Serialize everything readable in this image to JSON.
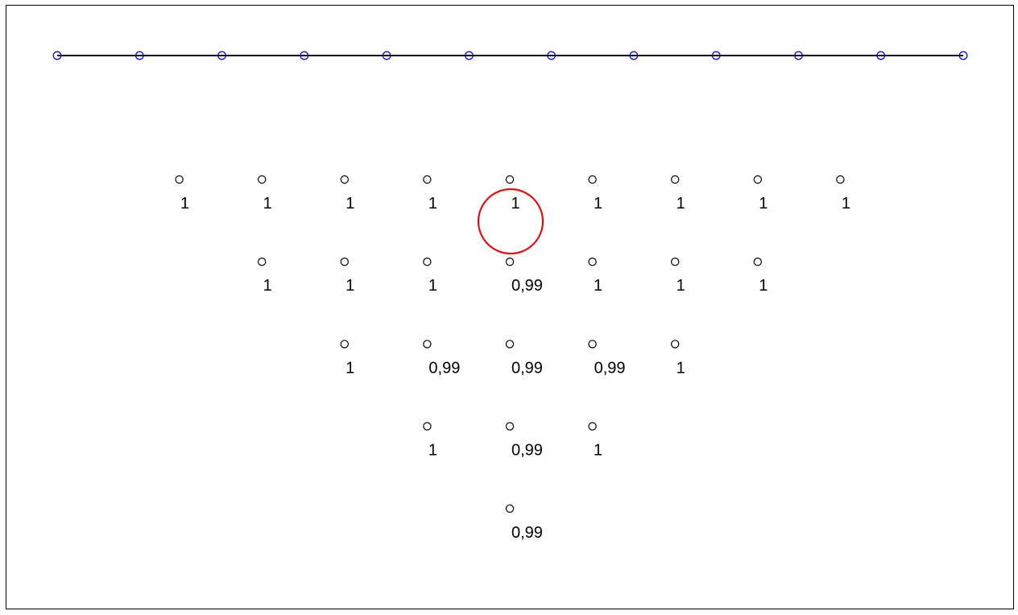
{
  "rail": {
    "node_count": 12,
    "line_color": "#000000",
    "node_color": "#1010c8"
  },
  "grid": {
    "rows": [
      {
        "values": [
          "1",
          "1",
          "1",
          "1",
          "1",
          "1",
          "1",
          "1",
          "1"
        ]
      },
      {
        "values": [
          "1",
          "1",
          "1",
          "0,99",
          "1",
          "1",
          "1"
        ]
      },
      {
        "values": [
          "1",
          "0,99",
          "0,99",
          "0,99",
          "1"
        ]
      },
      {
        "values": [
          "1",
          "0,99",
          "1"
        ]
      },
      {
        "values": [
          "0,99"
        ]
      }
    ]
  },
  "highlight": {
    "row": 0,
    "col": 4,
    "color": "#e01010"
  }
}
